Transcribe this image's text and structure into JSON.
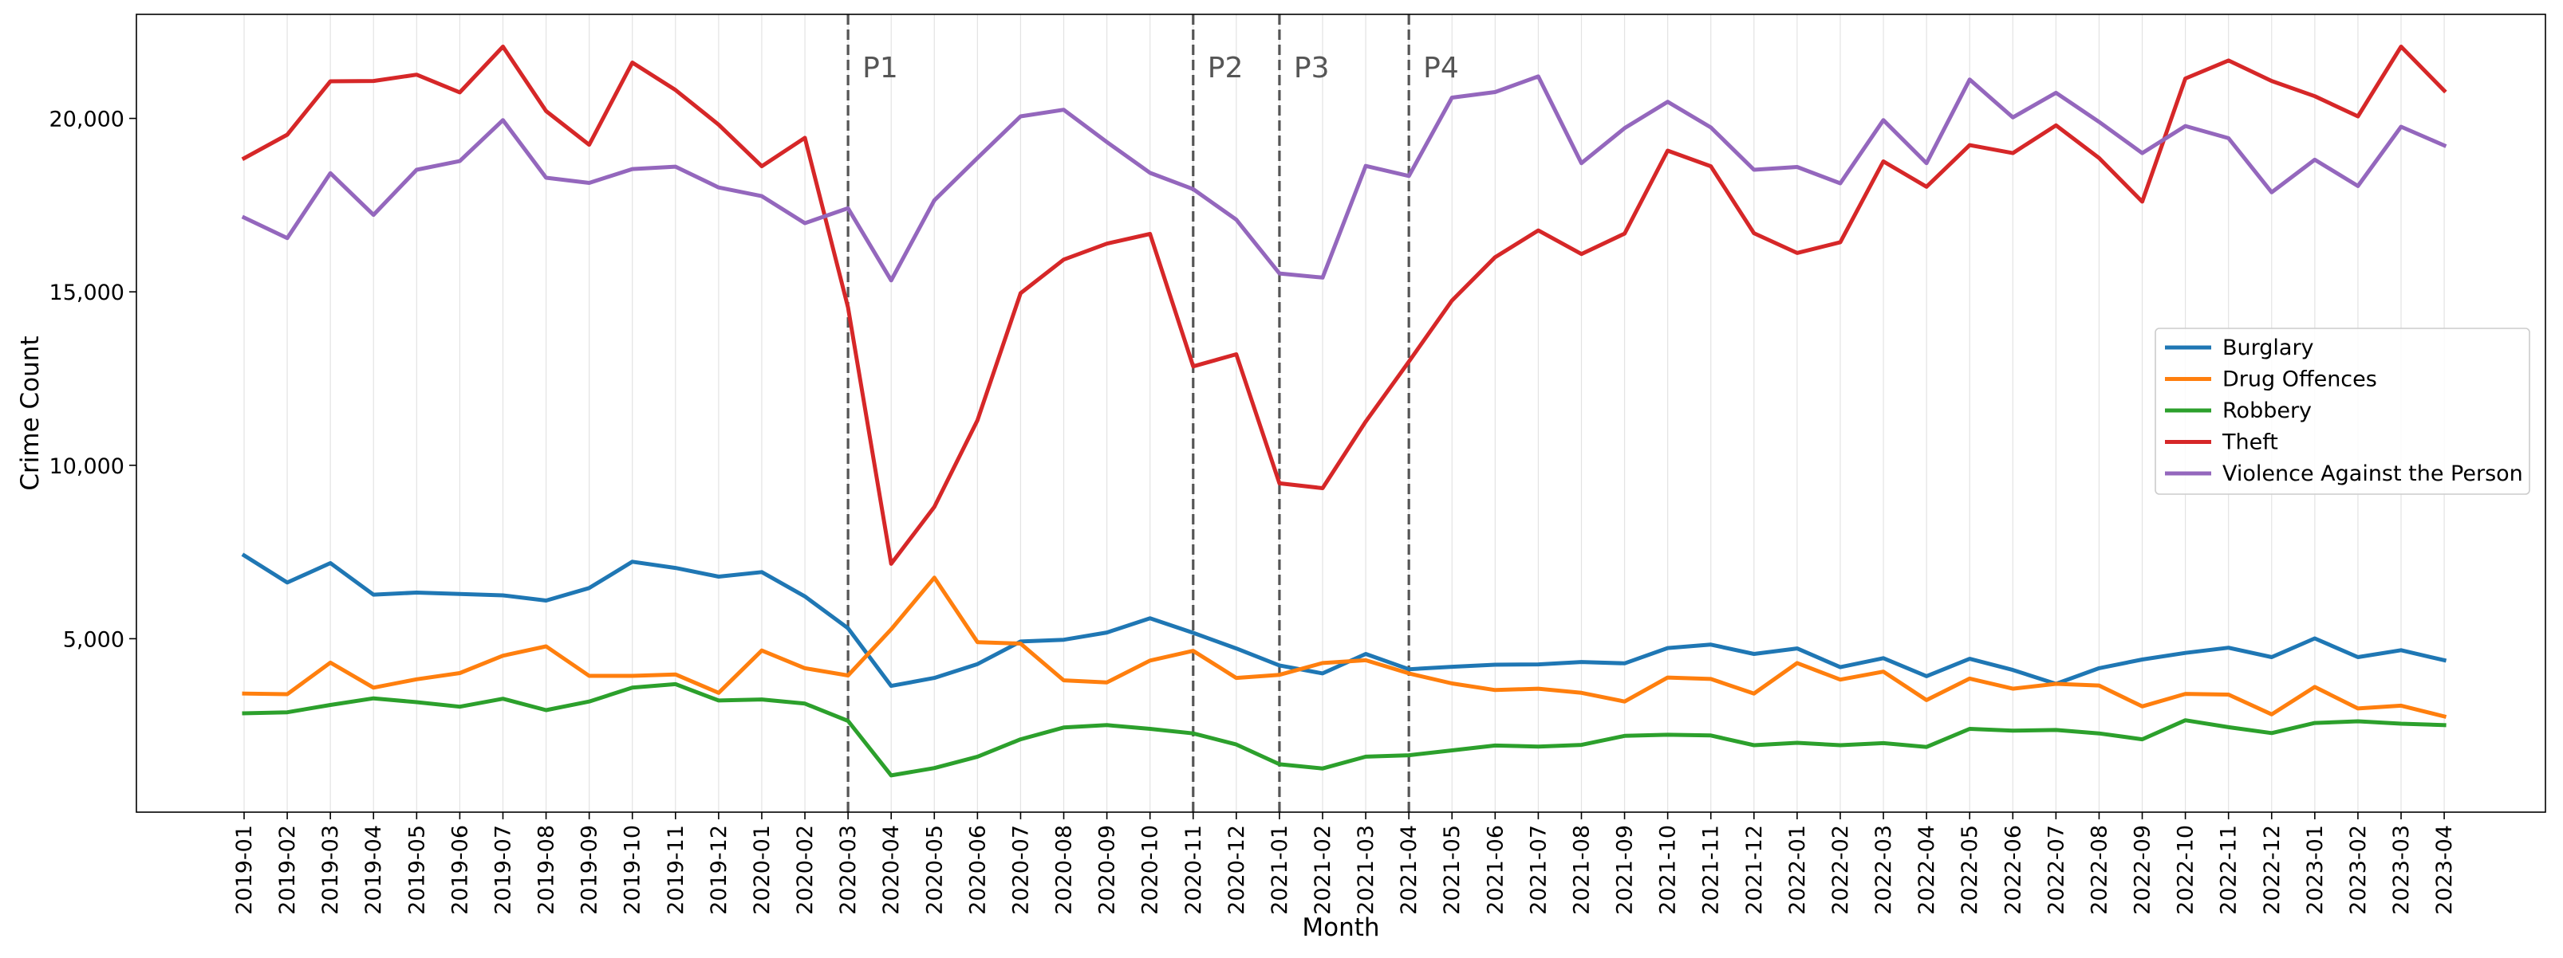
{
  "chart_data": {
    "type": "line",
    "title": "",
    "xlabel": "Month",
    "ylabel": "Crime Count",
    "ylim": [
      0,
      23000
    ],
    "y_ticks": [
      5000,
      10000,
      15000,
      20000
    ],
    "y_tick_labels": [
      "5,000",
      "10,000",
      "15,000",
      "20,000"
    ],
    "grid": "vertical",
    "legend_position": "center-right",
    "x": [
      "2019-01",
      "2019-02",
      "2019-03",
      "2019-04",
      "2019-05",
      "2019-06",
      "2019-07",
      "2019-08",
      "2019-09",
      "2019-10",
      "2019-11",
      "2019-12",
      "2020-01",
      "2020-02",
      "2020-03",
      "2020-04",
      "2020-05",
      "2020-06",
      "2020-07",
      "2020-08",
      "2020-09",
      "2020-10",
      "2020-11",
      "2020-12",
      "2021-01",
      "2021-02",
      "2021-03",
      "2021-04",
      "2021-05",
      "2021-06",
      "2021-07",
      "2021-08",
      "2021-09",
      "2021-10",
      "2021-11",
      "2021-12",
      "2022-01",
      "2022-02",
      "2022-03",
      "2022-04",
      "2022-05",
      "2022-06",
      "2022-07",
      "2022-08",
      "2022-09",
      "2022-10",
      "2022-11",
      "2022-12",
      "2023-01",
      "2023-02",
      "2023-03",
      "2023-04"
    ],
    "series": [
      {
        "name": "Burglary",
        "color": "#1f77b4",
        "values": [
          7400,
          6620,
          7180,
          6270,
          6330,
          6290,
          6250,
          6100,
          6460,
          7220,
          7040,
          6790,
          6920,
          6220,
          5300,
          3640,
          3870,
          4270,
          4920,
          4970,
          5180,
          5590,
          5170,
          4720,
          4230,
          4000,
          4560,
          4120,
          4190,
          4250,
          4260,
          4330,
          4290,
          4730,
          4830,
          4560,
          4720,
          4180,
          4440,
          3920,
          4420,
          4100,
          3700,
          4150,
          4400,
          4590,
          4740,
          4470,
          5010,
          4470,
          4670,
          4380
        ]
      },
      {
        "name": "Drug Offences",
        "color": "#ff7f0e",
        "values": [
          3420,
          3400,
          4310,
          3590,
          3830,
          4010,
          4510,
          4780,
          3930,
          3930,
          3970,
          3440,
          4660,
          4150,
          3940,
          5270,
          6760,
          4900,
          4860,
          3800,
          3740,
          4370,
          4650,
          3870,
          3960,
          4300,
          4380,
          4000,
          3710,
          3520,
          3560,
          3440,
          3190,
          3880,
          3840,
          3420,
          4300,
          3820,
          4050,
          3230,
          3850,
          3560,
          3700,
          3650,
          3050,
          3410,
          3390,
          2820,
          3610,
          2990,
          3070,
          2760
        ]
      },
      {
        "name": "Robbery",
        "color": "#2ca02c",
        "values": [
          2850,
          2880,
          3090,
          3280,
          3170,
          3040,
          3270,
          2940,
          3190,
          3590,
          3690,
          3220,
          3250,
          3130,
          2630,
          1060,
          1270,
          1600,
          2100,
          2440,
          2510,
          2400,
          2270,
          1950,
          1380,
          1260,
          1600,
          1640,
          1780,
          1920,
          1890,
          1940,
          2200,
          2230,
          2210,
          1930,
          2000,
          1930,
          1990,
          1880,
          2400,
          2350,
          2370,
          2270,
          2100,
          2650,
          2450,
          2280,
          2570,
          2620,
          2550,
          2510
        ]
      },
      {
        "name": "Theft",
        "color": "#d62728",
        "values": [
          18850,
          19530,
          21070,
          21080,
          21260,
          20750,
          22070,
          20210,
          19240,
          21610,
          20820,
          19820,
          18620,
          19440,
          14550,
          7160,
          8800,
          11300,
          14960,
          15930,
          16390,
          16670,
          12850,
          13200,
          9480,
          9340,
          11260,
          12990,
          14750,
          16000,
          16770,
          16090,
          16680,
          19070,
          18620,
          16690,
          16120,
          16430,
          18760,
          18030,
          19230,
          19000,
          19800,
          18860,
          17600,
          21150,
          21670,
          21080,
          20640,
          20060,
          22070,
          20800
        ]
      },
      {
        "name": "Violence Against the Person",
        "color": "#9467bd",
        "values": [
          17140,
          16550,
          18420,
          17220,
          18520,
          18770,
          19950,
          18290,
          18140,
          18540,
          18610,
          18010,
          17760,
          16980,
          17410,
          15330,
          17640,
          18860,
          20060,
          20250,
          19320,
          18430,
          17960,
          17080,
          15530,
          15410,
          18630,
          18340,
          20600,
          20760,
          21210,
          18710,
          19720,
          20480,
          19740,
          18520,
          18600,
          18130,
          19950,
          18710,
          21120,
          20030,
          20740,
          19900,
          19000,
          19780,
          19430,
          17870,
          18810,
          18050,
          19760,
          19220
        ]
      }
    ],
    "annotations": [
      {
        "label": "P1",
        "x": "2020-03"
      },
      {
        "label": "P2",
        "x": "2020-11"
      },
      {
        "label": "P3",
        "x": "2021-01"
      },
      {
        "label": "P4",
        "x": "2021-04"
      }
    ]
  }
}
